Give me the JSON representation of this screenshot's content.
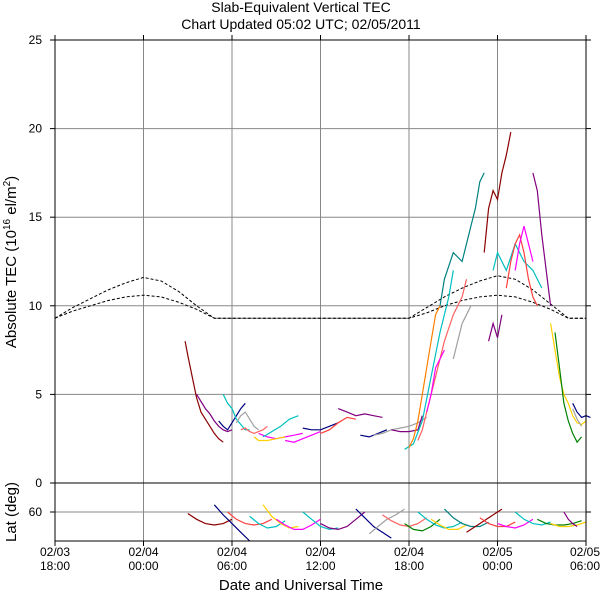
{
  "chart_data": {
    "type": "line",
    "title": "Slab-Equivalent Vertical TEC",
    "subtitle": "Chart Updated 05:02 UTC; 02/05/2011",
    "xlabel": "Date and Universal Time",
    "ylabel_main_prefix": "Absolute TEC (10",
    "ylabel_main_exp": "16",
    "ylabel_main_mid": " el/m",
    "ylabel_main_exp2": "2",
    "ylabel_main_suffix": ")",
    "ylabel_lat": "Lat (deg)",
    "ylim": [
      0,
      25
    ],
    "yticks": [
      "0",
      "5",
      "10",
      "15",
      "20",
      "25"
    ],
    "lat_ylim": [
      80,
      40
    ],
    "lat_yticks": [
      "0",
      "60"
    ],
    "xlim_hours": [
      0,
      60
    ],
    "xticks": [
      {
        "date": "02/03",
        "time": "18:00"
      },
      {
        "date": "02/04",
        "time": "00:00"
      },
      {
        "date": "02/04",
        "time": "06:00"
      },
      {
        "date": "02/04",
        "time": "12:00"
      },
      {
        "date": "02/04",
        "time": "18:00"
      },
      {
        "date": "02/05",
        "time": "00:00"
      },
      {
        "date": "02/05",
        "time": "06:00"
      }
    ],
    "grid": true,
    "reference_curves": [
      {
        "style": "dashed",
        "x": [
          0,
          2,
          4,
          6,
          8,
          10,
          12,
          14,
          16,
          18,
          20,
          22,
          24,
          26,
          28,
          30,
          32,
          34,
          36,
          38,
          40,
          42,
          44,
          46,
          48,
          50,
          52,
          54,
          56,
          58,
          60
        ],
        "y": [
          9.3,
          9.9,
          10.4,
          10.9,
          11.3,
          11.6,
          11.4,
          10.8,
          10.0,
          9.3,
          9.3,
          9.3,
          9.3,
          9.3,
          9.3,
          9.3,
          9.3,
          9.3,
          9.3,
          9.3,
          9.3,
          9.9,
          10.5,
          11.0,
          11.4,
          11.7,
          11.5,
          10.9,
          10.1,
          9.3,
          9.3
        ]
      },
      {
        "style": "dashed",
        "x": [
          0,
          2,
          4,
          6,
          8,
          10,
          12,
          14,
          16,
          18,
          20,
          22,
          24,
          26,
          28,
          30,
          32,
          34,
          36,
          38,
          40,
          42,
          44,
          46,
          48,
          50,
          52,
          54,
          56,
          58,
          60
        ],
        "y": [
          9.3,
          9.7,
          10.0,
          10.3,
          10.5,
          10.6,
          10.5,
          10.2,
          9.8,
          9.3,
          9.3,
          9.3,
          9.3,
          9.3,
          9.3,
          9.3,
          9.3,
          9.3,
          9.3,
          9.3,
          9.3,
          9.6,
          10.0,
          10.3,
          10.5,
          10.6,
          10.5,
          10.2,
          9.8,
          9.3,
          9.3
        ]
      }
    ],
    "series": [
      {
        "color": "#8b0000",
        "x": [
          14.7,
          15.0,
          15.5,
          16.0,
          16.5,
          17.0,
          17.5,
          18.0,
          18.5,
          19.0
        ],
        "y": [
          8.0,
          7.2,
          6.0,
          4.8,
          4.0,
          3.6,
          3.2,
          2.8,
          2.5,
          2.3
        ]
      },
      {
        "color": "#800080",
        "x": [
          16.0,
          16.5,
          17.0,
          17.5,
          18.0,
          18.5,
          19.0,
          19.5,
          20.0
        ],
        "y": [
          5.0,
          4.6,
          4.2,
          3.9,
          3.5,
          3.2,
          3.0,
          2.9,
          3.0
        ]
      },
      {
        "color": "#000080",
        "x": [
          18.5,
          19.0,
          19.5,
          20.0,
          20.5,
          21.0,
          21.5
        ],
        "y": [
          3.5,
          3.2,
          3.0,
          3.4,
          3.8,
          4.2,
          4.5
        ]
      },
      {
        "color": "#00c0c0",
        "x": [
          19.0,
          19.5,
          20.0,
          20.5,
          21.0,
          21.5,
          22.0
        ],
        "y": [
          5.0,
          4.5,
          4.2,
          3.6,
          3.3,
          3.0,
          3.0
        ]
      },
      {
        "color": "#a0a0a0",
        "x": [
          20.5,
          21.0,
          21.5,
          22.0,
          22.5,
          23.0
        ],
        "y": [
          3.4,
          3.8,
          4.0,
          3.6,
          3.2,
          3.0
        ]
      },
      {
        "color": "#ff6060",
        "x": [
          21.0,
          21.5,
          22.0,
          22.5,
          23.0,
          23.5,
          24.0
        ],
        "y": [
          3.0,
          3.1,
          2.9,
          2.8,
          2.9,
          3.0,
          3.2
        ]
      },
      {
        "color": "#ff00ff",
        "x": [
          23.0,
          24.0,
          25.0,
          26.0,
          27.0,
          28.0
        ],
        "y": [
          2.8,
          2.6,
          2.5,
          2.6,
          2.7,
          2.8
        ]
      },
      {
        "color": "#ffd000",
        "x": [
          22.5,
          23.0,
          24.0,
          25.0,
          26.0
        ],
        "y": [
          2.6,
          2.4,
          2.4,
          2.5,
          2.6
        ]
      },
      {
        "color": "#00c0c0",
        "x": [
          23.5,
          24.5,
          25.5,
          26.5,
          27.5
        ],
        "y": [
          2.6,
          2.9,
          3.2,
          3.6,
          3.8
        ]
      },
      {
        "color": "#ff00ff",
        "x": [
          26.0,
          27.0,
          28.0,
          29.0,
          30.0
        ],
        "y": [
          2.4,
          2.3,
          2.5,
          2.7,
          2.9
        ]
      },
      {
        "color": "#000080",
        "x": [
          28.0,
          29.0,
          30.0,
          31.0,
          32.0
        ],
        "y": [
          3.1,
          3.0,
          3.0,
          3.2,
          3.4
        ]
      },
      {
        "color": "#ff4040",
        "x": [
          30.0,
          31.0,
          32.0,
          33.0,
          34.0
        ],
        "y": [
          2.8,
          3.0,
          3.4,
          3.7,
          3.6
        ]
      },
      {
        "color": "#800080",
        "x": [
          32.0,
          33.0,
          34.0,
          35.0,
          36.0,
          37.0
        ],
        "y": [
          4.2,
          4.0,
          3.8,
          3.9,
          3.8,
          3.7
        ]
      },
      {
        "color": "#000080",
        "x": [
          34.5,
          35.5,
          36.5,
          37.5
        ],
        "y": [
          2.7,
          2.6,
          2.8,
          3.0
        ]
      },
      {
        "color": "#a0a0a0",
        "x": [
          36.0,
          37.0,
          38.0,
          39.0,
          40.0,
          41.0,
          42.0
        ],
        "y": [
          2.7,
          2.8,
          3.0,
          3.1,
          3.2,
          3.4,
          3.7
        ]
      },
      {
        "color": "#800080",
        "x": [
          38.0,
          39.0,
          40.0,
          41.0,
          41.5
        ],
        "y": [
          3.0,
          2.9,
          2.9,
          3.0,
          3.8
        ]
      },
      {
        "color": "#00c0c0",
        "x": [
          39.5,
          40.5,
          41.5,
          42.5,
          43.5,
          44.5,
          45.0
        ],
        "y": [
          1.9,
          2.2,
          3.5,
          6.0,
          8.5,
          10.5,
          12.0
        ]
      },
      {
        "color": "#ff8000",
        "x": [
          40.0,
          40.5,
          41.0,
          41.5,
          42.0,
          42.5,
          43.0,
          43.5
        ],
        "y": [
          2.0,
          2.5,
          3.5,
          5.0,
          6.5,
          8.0,
          9.5,
          10.0
        ]
      },
      {
        "color": "#ff6060",
        "x": [
          41.0,
          41.5,
          42.0,
          43.0,
          44.0,
          45.0,
          46.0,
          46.5
        ],
        "y": [
          2.4,
          3.0,
          4.0,
          6.0,
          8.0,
          9.5,
          10.5,
          11.5
        ]
      },
      {
        "color": "#ff00ff",
        "x": [
          42.0,
          42.5,
          43.0,
          43.5,
          44.0
        ],
        "y": [
          4.0,
          5.0,
          6.5,
          7.0,
          7.5
        ]
      },
      {
        "color": "#008080",
        "x": [
          43.5,
          44.0,
          45.0,
          46.0,
          47.0,
          47.5,
          48.0,
          48.5
        ],
        "y": [
          10.0,
          11.5,
          13.0,
          12.5,
          14.5,
          15.5,
          17.0,
          17.5
        ]
      },
      {
        "color": "#a0a0a0",
        "x": [
          45.0,
          45.5,
          46.0,
          46.5,
          47.0
        ],
        "y": [
          7.0,
          8.0,
          9.0,
          9.5,
          10.0
        ]
      },
      {
        "color": "#8b0000",
        "x": [
          48.5,
          49.0,
          49.5,
          50.0,
          50.5,
          51.0,
          51.5
        ],
        "y": [
          13.0,
          15.5,
          16.5,
          16.0,
          17.5,
          18.5,
          19.8
        ]
      },
      {
        "color": "#800080",
        "x": [
          49.0,
          49.5,
          50.0,
          50.5
        ],
        "y": [
          8.0,
          9.0,
          8.2,
          9.5
        ]
      },
      {
        "color": "#00c0c0",
        "x": [
          49.5,
          50.0,
          51.0,
          52.0,
          53.0,
          54.0,
          55.0
        ],
        "y": [
          12.0,
          13.0,
          12.0,
          13.5,
          12.5,
          12.0,
          11.0
        ]
      },
      {
        "color": "#ff4040",
        "x": [
          51.0,
          51.5,
          52.0,
          52.5,
          53.0,
          53.5,
          54.0,
          54.5
        ],
        "y": [
          11.0,
          12.5,
          13.5,
          14.0,
          13.0,
          11.5,
          10.5,
          10.0
        ]
      },
      {
        "color": "#ff00ff",
        "x": [
          52.0,
          52.5,
          53.0,
          53.5,
          54.0
        ],
        "y": [
          12.0,
          13.5,
          14.5,
          13.5,
          12.5
        ]
      },
      {
        "color": "#800080",
        "x": [
          54.0,
          54.5,
          55.0,
          55.5,
          56.0
        ],
        "y": [
          17.5,
          16.5,
          14.0,
          12.0,
          10.0
        ]
      },
      {
        "color": "#ffd000",
        "x": [
          56.0,
          56.5,
          57.0,
          57.5,
          58.0,
          58.5,
          59.0,
          59.5,
          60.0
        ],
        "y": [
          9.0,
          7.5,
          6.0,
          5.0,
          4.5,
          3.8,
          3.4,
          3.3,
          3.5
        ]
      },
      {
        "color": "#008000",
        "x": [
          56.5,
          57.0,
          57.5,
          58.0,
          58.5,
          59.0,
          59.5
        ],
        "y": [
          8.5,
          6.5,
          4.5,
          3.5,
          2.8,
          2.3,
          2.6
        ]
      },
      {
        "color": "#000080",
        "x": [
          58.5,
          59.0,
          59.5,
          60.0,
          60.5
        ],
        "y": [
          4.5,
          4.0,
          3.7,
          3.8,
          3.7
        ]
      },
      {
        "color": "#a0a0a0",
        "x": [
          58.5,
          59.0,
          59.5
        ],
        "y": [
          4.2,
          3.6,
          3.2
        ]
      }
    ],
    "lat_series": [
      {
        "color": "#8b0000",
        "x": [
          15.0,
          16.0,
          17.0,
          18.0,
          19.0,
          20.0
        ],
        "y": [
          59,
          55,
          52,
          51,
          52,
          55
        ]
      },
      {
        "color": "#000080",
        "x": [
          18.0,
          19.0,
          20.0,
          21.0,
          22.0
        ],
        "y": [
          65,
          58,
          52,
          46,
          40
        ]
      },
      {
        "color": "#ff4040",
        "x": [
          19.5,
          20.5,
          21.5,
          22.5,
          23.5,
          24.5
        ],
        "y": [
          60,
          55,
          52,
          51,
          52,
          55
        ]
      },
      {
        "color": "#00c0c0",
        "x": [
          22.0,
          23.0,
          24.0,
          25.0,
          26.0
        ],
        "y": [
          57,
          52,
          49,
          50,
          54
        ]
      },
      {
        "color": "#ffd000",
        "x": [
          23.5,
          24.5,
          25.5,
          26.5,
          27.5
        ],
        "y": [
          65,
          57,
          52,
          49,
          50
        ]
      },
      {
        "color": "#ff00ff",
        "x": [
          25.0,
          26.0,
          27.0,
          28.0,
          29.0,
          30.0
        ],
        "y": [
          55,
          51,
          48,
          48,
          51,
          55
        ]
      },
      {
        "color": "#00c0c0",
        "x": [
          28.0,
          29.0,
          30.0,
          31.0,
          32.0
        ],
        "y": [
          60,
          55,
          50,
          48,
          49
        ]
      },
      {
        "color": "#800080",
        "x": [
          30.0,
          31.0,
          32.0,
          33.0,
          34.0,
          35.0
        ],
        "y": [
          52,
          49,
          48,
          50,
          55,
          60
        ]
      },
      {
        "color": "#000080",
        "x": [
          34.0,
          35.0,
          36.0,
          37.0,
          38.0
        ],
        "y": [
          62,
          56,
          50,
          46,
          42
        ]
      },
      {
        "color": "#a0a0a0",
        "x": [
          35.5,
          36.5,
          37.5,
          38.5,
          39.5
        ],
        "y": [
          45,
          50,
          55,
          58,
          62
        ]
      },
      {
        "color": "#ff6060",
        "x": [
          37.0,
          38.0,
          39.0,
          40.0,
          41.0,
          42.0
        ],
        "y": [
          58,
          54,
          51,
          50,
          52,
          56
        ]
      },
      {
        "color": "#008000",
        "x": [
          39.5,
          40.5,
          41.5,
          42.5,
          43.5
        ],
        "y": [
          52,
          48,
          47,
          50,
          55
        ]
      },
      {
        "color": "#00c0c0",
        "x": [
          41.0,
          42.0,
          43.0,
          44.0,
          45.0,
          46.0
        ],
        "y": [
          60,
          55,
          51,
          49,
          50,
          53
        ]
      },
      {
        "color": "#ffd000",
        "x": [
          42.5,
          43.5,
          44.5,
          45.5,
          46.5
        ],
        "y": [
          55,
          51,
          48,
          48,
          51
        ]
      },
      {
        "color": "#008080",
        "x": [
          44.0,
          45.0,
          46.0,
          47.0,
          48.0,
          49.0
        ],
        "y": [
          62,
          56,
          52,
          50,
          50,
          53
        ]
      },
      {
        "color": "#8b0000",
        "x": [
          46.5,
          47.5,
          48.5,
          49.5,
          50.5
        ],
        "y": [
          46,
          50,
          54,
          58,
          62
        ]
      },
      {
        "color": "#ff4040",
        "x": [
          48.0,
          49.0,
          50.0,
          51.0,
          52.0
        ],
        "y": [
          56,
          52,
          50,
          50,
          53
        ]
      },
      {
        "color": "#ff00ff",
        "x": [
          50.0,
          51.0,
          52.0,
          53.0,
          54.0
        ],
        "y": [
          52,
          50,
          49,
          51,
          55
        ]
      },
      {
        "color": "#00c0c0",
        "x": [
          52.0,
          53.0,
          54.0,
          55.0,
          56.0
        ],
        "y": [
          60,
          55,
          52,
          51,
          53
        ]
      },
      {
        "color": "#008000",
        "x": [
          54.5,
          55.5,
          56.5,
          57.5,
          58.5,
          59.5
        ],
        "y": [
          55,
          52,
          51,
          51,
          52,
          54
        ]
      },
      {
        "color": "#ffd000",
        "x": [
          56.0,
          57.0,
          58.0,
          59.0,
          60.0
        ],
        "y": [
          52,
          50,
          50,
          51,
          53
        ]
      },
      {
        "color": "#800080",
        "x": [
          57.5,
          58.0,
          58.5,
          59.0
        ],
        "y": [
          60,
          55,
          52,
          50
        ]
      }
    ]
  }
}
